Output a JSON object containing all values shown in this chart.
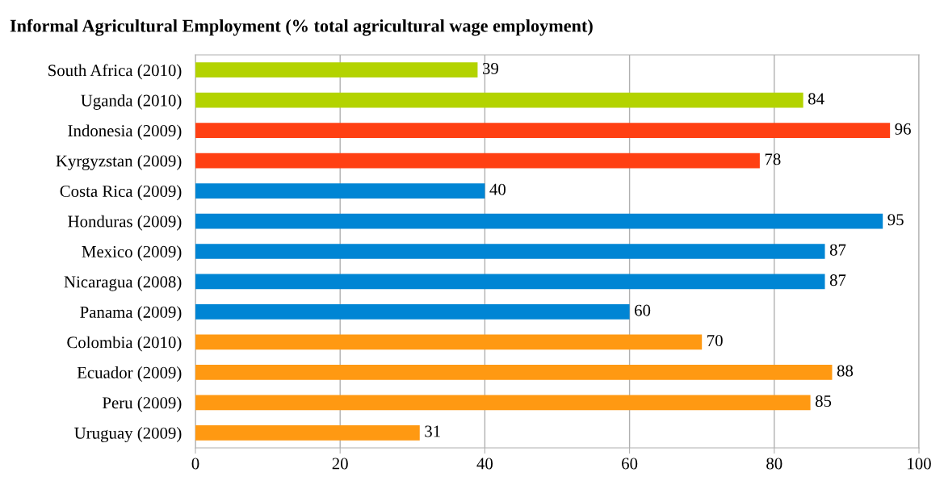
{
  "chart_data": {
    "type": "bar",
    "orientation": "horizontal",
    "title": "Informal Agricultural Employment (% total agricultural wage employment)",
    "categories": [
      "South Africa (2010)",
      "Uganda (2010)",
      "Indonesia (2009)",
      "Kyrgyzstan (2009)",
      "Costa Rica (2009)",
      "Honduras (2009)",
      "Mexico (2009)",
      "Nicaragua (2008)",
      "Panama (2009)",
      "Colombia (2010)",
      "Ecuador (2009)",
      "Peru (2009)",
      "Uruguay (2009)"
    ],
    "values": [
      39,
      84,
      96,
      78,
      40,
      95,
      87,
      87,
      60,
      70,
      88,
      85,
      31
    ],
    "colors": [
      "#b3d300",
      "#b3d300",
      "#ff4013",
      "#ff4013",
      "#0085d4",
      "#0085d4",
      "#0085d4",
      "#0085d4",
      "#0085d4",
      "#ff9912",
      "#ff9912",
      "#ff9912",
      "#ff9912"
    ],
    "xlim": [
      0,
      100
    ],
    "xticks": [
      0,
      20,
      40,
      60,
      80,
      100
    ],
    "grid": "x",
    "data_labels": true
  }
}
